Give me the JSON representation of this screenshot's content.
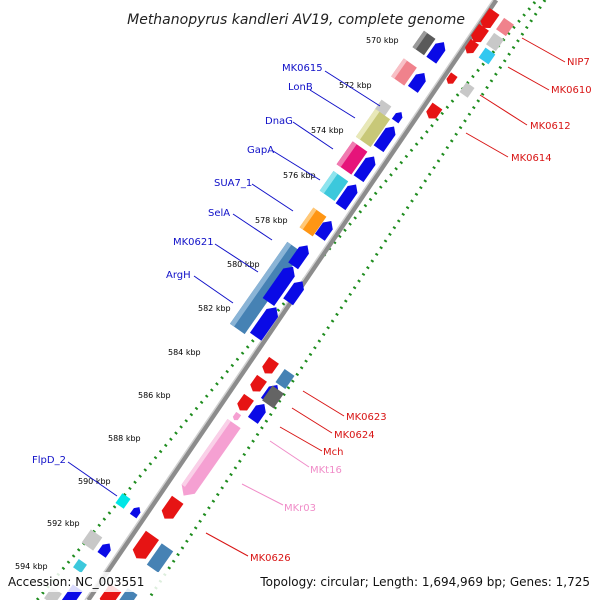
{
  "title": "Methanopyrus kandleri AV19, complete genome",
  "footer": {
    "accession": "Accession: NC_003551",
    "topology": "Topology: circular; Length: 1,694,969 bp; Genes: 1,725"
  },
  "colors": {
    "backbone": "#888888",
    "ruler": "#1e8c1e",
    "forward_label": "#1010c8",
    "reverse_label": "#d81414",
    "rna_label": "#f08cc8",
    "gene_blue": "#0a0ae6",
    "gene_red": "#e61414",
    "gene_pink": "#f5a0d2",
    "gene_cyan": "#3cc8dc",
    "gene_orange": "#ff9614",
    "gene_olive": "#c8c878",
    "gene_magenta": "#e6147a",
    "gene_gray": "#c8c8c8",
    "gene_darkgray": "#646464",
    "gene_steelblue": "#4682b4",
    "gene_skyblue": "#32c8f0",
    "gene_salmon": "#f0828c"
  },
  "scale_labels": [
    "570 kbp",
    "572 kbp",
    "574 kbp",
    "576 kbp",
    "578 kbp",
    "580 kbp",
    "582 kbp",
    "584 kbp",
    "586 kbp",
    "588 kbp",
    "590 kbp",
    "592 kbp",
    "594 kbp"
  ],
  "gene_labels_forward": [
    "MK0615",
    "LonB",
    "DnaG",
    "GapA",
    "SUA7_1",
    "SelA",
    "MK0621",
    "ArgH",
    "FlpD_2"
  ],
  "gene_labels_reverse": [
    "NIP7",
    "MK0610",
    "MK0612",
    "MK0614",
    "MK0623",
    "MK0624",
    "Mch",
    "MKt16",
    "MKr03",
    "MK0626"
  ],
  "gene_labels_rna": [
    "MKt16",
    "MKr03"
  ]
}
